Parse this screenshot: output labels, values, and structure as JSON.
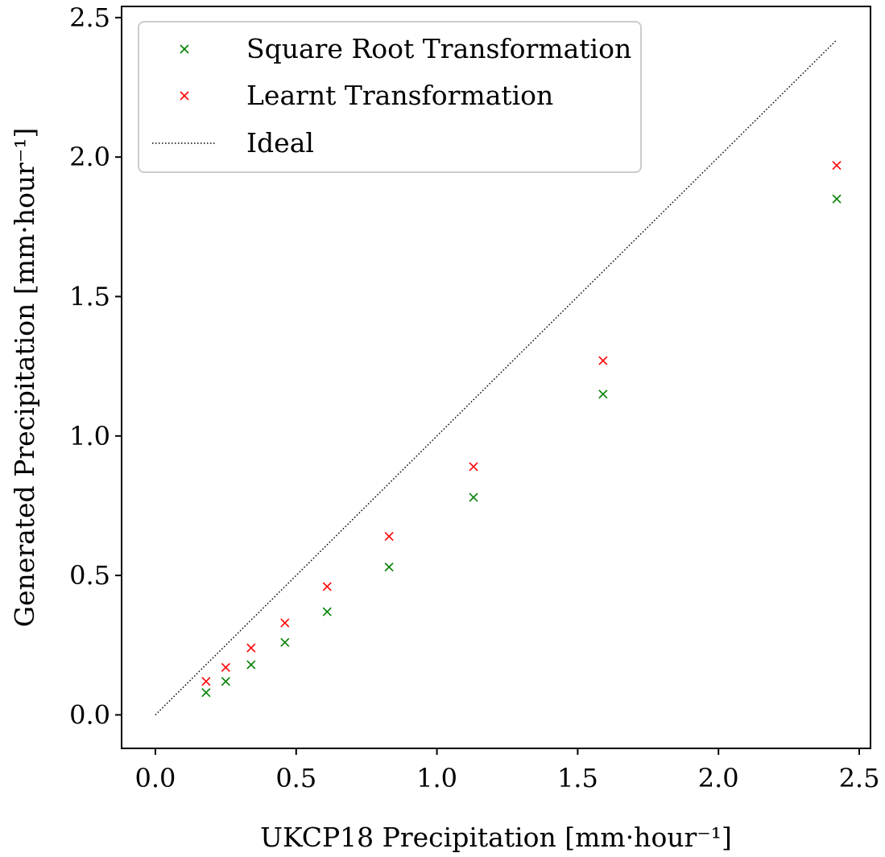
{
  "chart_data": {
    "type": "scatter",
    "title": "",
    "xlabel": "UKCP18 Precipitation [mm·hour⁻¹]",
    "ylabel": "Generated Precipitation [mm·hour⁻¹]",
    "xlim": [
      -0.12,
      2.54
    ],
    "ylim": [
      -0.12,
      2.54
    ],
    "xticks": [
      "0.0",
      "0.5",
      "1.0",
      "1.5",
      "2.0",
      "2.5"
    ],
    "yticks": [
      "0.0",
      "0.5",
      "1.0",
      "1.5",
      "2.0",
      "2.5"
    ],
    "grid": false,
    "legend_position": "top-left",
    "x": [
      0.18,
      0.25,
      0.34,
      0.46,
      0.61,
      0.83,
      1.13,
      1.59,
      2.42
    ],
    "series": [
      {
        "name": "Square Root Transformation",
        "color": "#008000",
        "marker": "x",
        "values": [
          0.08,
          0.12,
          0.18,
          0.26,
          0.37,
          0.53,
          0.78,
          1.15,
          1.85
        ]
      },
      {
        "name": "Learnt Transformation",
        "color": "#ff0000",
        "marker": "x",
        "values": [
          0.12,
          0.17,
          0.24,
          0.33,
          0.46,
          0.64,
          0.89,
          1.27,
          1.97
        ]
      }
    ],
    "reference_line": {
      "name": "Ideal",
      "style": "dotted",
      "color": "#000000",
      "x": [
        0.0,
        2.42
      ],
      "y": [
        0.0,
        2.42
      ]
    }
  }
}
